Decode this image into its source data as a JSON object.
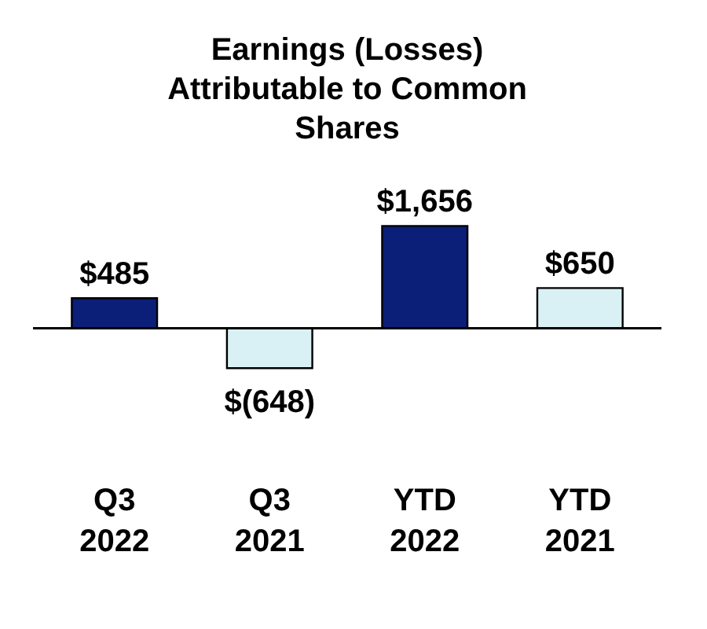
{
  "chart_data": {
    "type": "bar",
    "title": "Earnings (Losses) Attributable to Common Shares",
    "categories": [
      "Q3 2022",
      "Q3 2021",
      "YTD 2022",
      "YTD 2021"
    ],
    "values": [
      485,
      -648,
      1656,
      650
    ],
    "colors": [
      "#0b1f78",
      "#d9f1f5",
      "#0b1f78",
      "#d9f1f5"
    ],
    "value_labels": [
      "$485",
      "$(648)",
      "$1,656",
      "$650"
    ]
  }
}
